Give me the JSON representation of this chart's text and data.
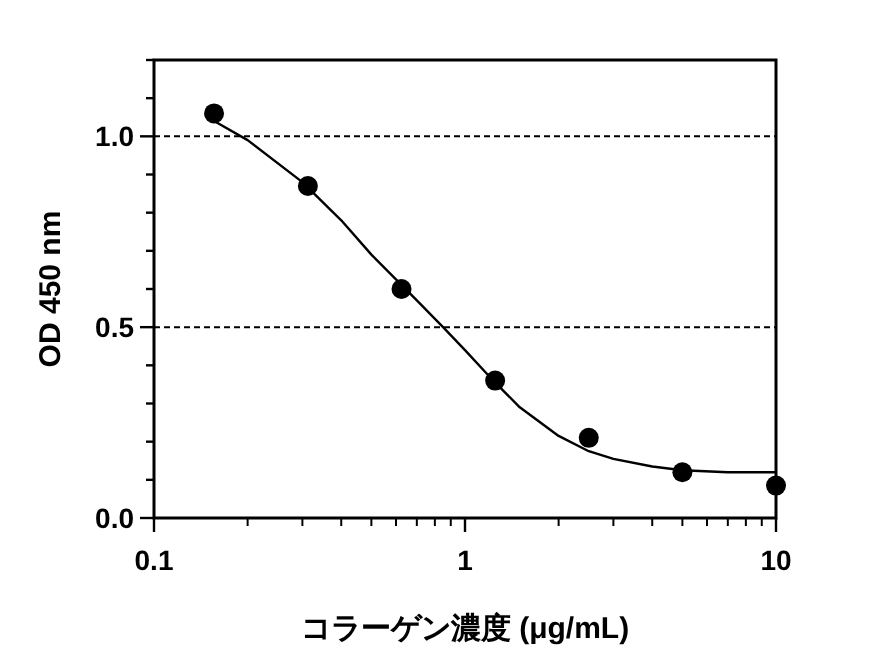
{
  "chart_data": {
    "type": "scatter",
    "xlabel": "コラーゲン濃度 (μg/mL)",
    "ylabel": "OD 450 nm",
    "log": "x",
    "xlim": [
      0.1,
      10
    ],
    "xticks": [
      0.1,
      1,
      10
    ],
    "ylim": [
      0,
      1.2
    ],
    "yticks": [
      {
        "value": 0,
        "label": "0.0"
      },
      {
        "value": 0.1,
        "label": null
      },
      {
        "value": 0.2,
        "label": null
      },
      {
        "value": 0.3,
        "label": null
      },
      {
        "value": 0.4,
        "label": null
      },
      {
        "value": 0.5,
        "label": "0.5"
      },
      {
        "value": 0.6,
        "label": null
      },
      {
        "value": 0.7,
        "label": null
      },
      {
        "value": 0.8,
        "label": null
      },
      {
        "value": 0.9,
        "label": null
      },
      {
        "value": 1,
        "label": "1.0"
      },
      {
        "value": 1.1,
        "label": null
      },
      {
        "value": 1.2,
        "label": null
      }
    ],
    "grid": "y",
    "marker": "circle",
    "series": [
      {
        "color": "#000000",
        "x": [
          0.156,
          0.3125,
          0.625,
          1.25,
          2.5,
          5,
          10
        ],
        "values": [
          1.06,
          0.87,
          0.6,
          0.36,
          0.21,
          0.12,
          0.085
        ]
      },
      {
        "type": "line",
        "color": "#000000",
        "marker": "none",
        "x": [
          0.156,
          0.2,
          0.3,
          0.4,
          0.5,
          0.7,
          0.85,
          1,
          1.2,
          1.5,
          2,
          2.5,
          3,
          4,
          5,
          7,
          10
        ],
        "values": [
          1.04,
          0.99,
          0.88,
          0.78,
          0.69,
          0.57,
          0.5,
          0.44,
          0.37,
          0.29,
          0.215,
          0.175,
          0.155,
          0.135,
          0.125,
          0.12,
          0.12
        ]
      }
    ]
  }
}
